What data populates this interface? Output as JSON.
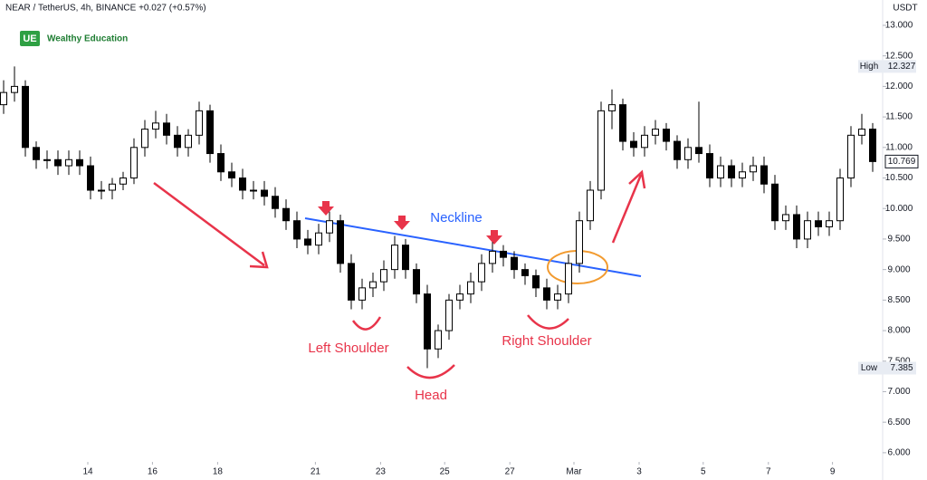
{
  "chart_data": {
    "type": "candlestick",
    "title": "NEAR / TetherUS, 4h, BINANCE +0.027 (+0.57%)",
    "brand": "Wealthy Education",
    "y_axis_label": "USDT",
    "open": [
      11.7,
      11.9,
      12.0,
      11.0,
      10.8,
      10.8,
      10.7,
      10.8,
      10.7,
      10.3,
      10.3,
      10.4,
      10.5,
      11.0,
      11.3,
      11.4,
      11.2,
      11.0,
      11.2,
      11.6,
      10.9,
      10.6,
      10.5,
      10.3,
      10.3,
      10.2,
      10.0,
      9.8,
      9.5,
      9.4,
      9.6,
      9.8,
      9.1,
      8.5,
      8.7,
      8.8,
      9.0,
      9.4,
      9.0,
      8.6,
      7.7,
      8.0,
      8.5,
      8.6,
      8.8,
      9.1,
      9.3,
      9.2,
      9.0,
      8.9,
      8.7,
      8.5,
      8.6,
      9.1,
      9.8,
      10.3,
      11.6,
      11.7,
      11.1,
      11.0,
      11.2,
      11.3,
      11.1,
      10.8,
      11.0,
      10.9,
      10.5,
      10.7,
      10.5,
      10.6,
      10.7,
      10.4,
      9.8,
      9.9,
      9.5,
      9.8,
      9.7,
      9.8,
      10.5,
      11.2,
      11.3
    ],
    "high": [
      12.1,
      12.327,
      12.1,
      11.1,
      10.95,
      10.95,
      10.95,
      10.95,
      10.85,
      10.45,
      10.5,
      10.6,
      11.15,
      11.45,
      11.6,
      11.55,
      11.35,
      11.3,
      11.75,
      11.7,
      11.05,
      10.75,
      10.65,
      10.45,
      10.45,
      10.35,
      10.15,
      9.95,
      9.65,
      9.75,
      9.95,
      9.9,
      9.25,
      8.85,
      8.95,
      9.15,
      9.55,
      9.5,
      9.1,
      8.75,
      8.1,
      8.6,
      8.75,
      8.95,
      9.25,
      9.45,
      9.4,
      9.3,
      9.1,
      9.0,
      8.85,
      8.75,
      9.25,
      9.95,
      10.45,
      11.75,
      11.95,
      11.8,
      11.25,
      11.35,
      11.45,
      11.4,
      11.2,
      11.15,
      11.75,
      11.05,
      10.85,
      10.8,
      10.75,
      10.85,
      10.85,
      10.55,
      10.05,
      10.05,
      9.95,
      9.95,
      9.95,
      10.65,
      11.35,
      11.55,
      11.4
    ],
    "low": [
      11.55,
      11.75,
      10.85,
      10.65,
      10.65,
      10.55,
      10.55,
      10.55,
      10.15,
      10.15,
      10.15,
      10.3,
      10.4,
      10.85,
      11.15,
      11.05,
      10.85,
      10.85,
      11.05,
      10.75,
      10.45,
      10.35,
      10.15,
      10.15,
      10.05,
      9.85,
      9.65,
      9.35,
      9.25,
      9.25,
      9.45,
      8.95,
      8.35,
      8.35,
      8.55,
      8.65,
      8.85,
      8.85,
      8.45,
      7.385,
      7.55,
      7.85,
      8.35,
      8.45,
      8.65,
      8.95,
      9.05,
      8.85,
      8.75,
      8.55,
      8.35,
      8.35,
      8.45,
      8.95,
      9.65,
      10.15,
      11.3,
      10.95,
      10.85,
      10.85,
      11.05,
      10.95,
      10.65,
      10.65,
      10.75,
      10.35,
      10.35,
      10.35,
      10.35,
      10.45,
      10.25,
      9.65,
      9.65,
      9.35,
      9.35,
      9.55,
      9.55,
      9.65,
      10.35,
      11.05,
      10.6
    ],
    "close": [
      11.9,
      12.0,
      11.0,
      10.8,
      10.8,
      10.7,
      10.8,
      10.7,
      10.3,
      10.3,
      10.4,
      10.5,
      11.0,
      11.3,
      11.4,
      11.2,
      11.0,
      11.2,
      11.6,
      10.9,
      10.6,
      10.5,
      10.3,
      10.3,
      10.2,
      10.0,
      9.8,
      9.5,
      9.4,
      9.6,
      9.8,
      9.1,
      8.5,
      8.7,
      8.8,
      9.0,
      9.4,
      9.0,
      8.6,
      7.7,
      8.0,
      8.5,
      8.6,
      8.8,
      9.1,
      9.3,
      9.2,
      9.0,
      8.9,
      8.7,
      8.5,
      8.6,
      9.1,
      9.8,
      10.3,
      11.6,
      11.7,
      11.1,
      11.0,
      11.2,
      11.3,
      11.1,
      10.8,
      11.0,
      10.9,
      10.5,
      10.7,
      10.5,
      10.6,
      10.7,
      10.4,
      9.8,
      9.9,
      9.5,
      9.8,
      9.7,
      9.8,
      10.5,
      11.2,
      11.3,
      10.769
    ],
    "up_color": "#ffffff",
    "down_color": "#000000",
    "ylim": [
      5.85,
      13.415
    ],
    "yticks": [
      {
        "value": 6,
        "label": "6.000"
      },
      {
        "value": 6.5,
        "label": "6.500"
      },
      {
        "value": 7,
        "label": "7.000"
      },
      {
        "value": 7.5,
        "label": "7.500"
      },
      {
        "value": 8,
        "label": "8.000"
      },
      {
        "value": 8.5,
        "label": "8.500"
      },
      {
        "value": 9,
        "label": "9.000"
      },
      {
        "value": 9.5,
        "label": "9.500"
      },
      {
        "value": 10,
        "label": "10.000"
      },
      {
        "value": 10.5,
        "label": "10.500"
      },
      {
        "value": 11,
        "label": "11.000"
      },
      {
        "value": 11.5,
        "label": "11.500"
      },
      {
        "value": 12,
        "label": "12.000"
      },
      {
        "value": 12.5,
        "label": "12.500"
      },
      {
        "value": 13,
        "label": "13.000"
      }
    ],
    "xticks": [
      {
        "value": 7.75,
        "label": "14"
      },
      {
        "value": 13.7,
        "label": "16"
      },
      {
        "value": 19.7,
        "label": "18"
      },
      {
        "value": 28.7,
        "label": "21"
      },
      {
        "value": 34.7,
        "label": "23"
      },
      {
        "value": 40.6,
        "label": "25"
      },
      {
        "value": 46.6,
        "label": "27"
      },
      {
        "value": 52.5,
        "label": "Mar"
      },
      {
        "value": 58.5,
        "label": "3"
      },
      {
        "value": 64.4,
        "label": "5"
      },
      {
        "value": 70.4,
        "label": "7"
      },
      {
        "value": 76.3,
        "label": "9"
      }
    ],
    "grid": false,
    "price_markers": [
      {
        "label": "High",
        "value": 12.327
      },
      {
        "label": "Low",
        "value": 7.385
      },
      {
        "value": 10.769
      }
    ],
    "annotations": [
      "Neckline",
      "Left Shoulder",
      "Head",
      "Right Shoulder"
    ]
  }
}
